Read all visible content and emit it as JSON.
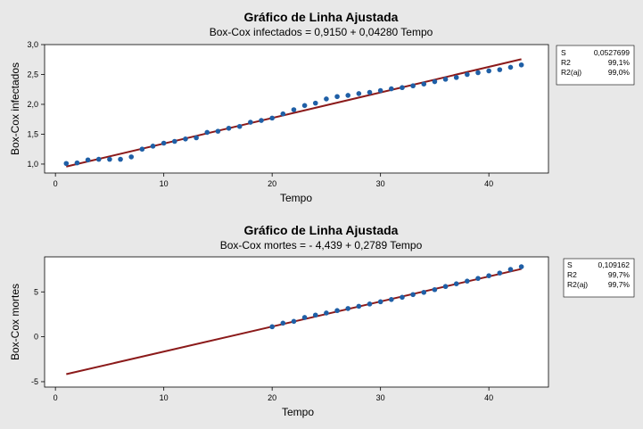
{
  "colors": {
    "point": "#1f5fa6",
    "line": "#8b1a1a"
  },
  "chart_data": [
    {
      "type": "scatter",
      "title": "Gráfico de Linha Ajustada",
      "subtitle": "Box-Cox infectados = 0,9150 + 0,04280 Tempo",
      "xlabel": "Tempo",
      "ylabel": "Box-Cox infectados",
      "xlim": [
        -1,
        45.5
      ],
      "ylim": [
        0.85,
        3.0
      ],
      "xticks": [
        0,
        10,
        20,
        30,
        40
      ],
      "yticks": [
        1.0,
        1.5,
        2.0,
        2.5,
        3.0
      ],
      "ytick_labels": [
        "1,0",
        "1,5",
        "2,0",
        "2,5",
        "3,0"
      ],
      "fit": {
        "intercept": 0.915,
        "slope": 0.0428,
        "x_range": [
          1,
          43
        ]
      },
      "points": {
        "x": [
          1,
          2,
          3,
          4,
          5,
          6,
          7,
          8,
          9,
          10,
          11,
          12,
          13,
          14,
          15,
          16,
          17,
          18,
          19,
          20,
          21,
          22,
          23,
          24,
          25,
          26,
          27,
          28,
          29,
          30,
          31,
          32,
          33,
          34,
          35,
          36,
          37,
          38,
          39,
          40,
          41,
          42,
          43
        ],
        "y": [
          1.01,
          1.02,
          1.07,
          1.08,
          1.08,
          1.08,
          1.12,
          1.25,
          1.3,
          1.35,
          1.38,
          1.42,
          1.44,
          1.53,
          1.55,
          1.6,
          1.63,
          1.7,
          1.73,
          1.77,
          1.84,
          1.91,
          1.98,
          2.02,
          2.09,
          2.13,
          2.15,
          2.18,
          2.2,
          2.23,
          2.26,
          2.28,
          2.31,
          2.34,
          2.38,
          2.42,
          2.45,
          2.5,
          2.53,
          2.56,
          2.58,
          2.62,
          2.66
        ]
      },
      "stats": [
        {
          "label": "S",
          "value": "0,0527699"
        },
        {
          "label": "R2",
          "value": "99,1%"
        },
        {
          "label": "R2(aj)",
          "value": "99,0%"
        }
      ]
    },
    {
      "type": "scatter",
      "title": "Gráfico de Linha Ajustada",
      "subtitle": "Box-Cox mortes = - 4,439 + 0,2789 Tempo",
      "xlabel": "Tempo",
      "ylabel": "Box-Cox mortes",
      "xlim": [
        -1,
        45.5
      ],
      "ylim": [
        -5.6,
        8.9
      ],
      "xticks": [
        0,
        10,
        20,
        30,
        40
      ],
      "yticks": [
        -5,
        0,
        5
      ],
      "ytick_labels": [
        "-5",
        "0",
        "5"
      ],
      "fit": {
        "intercept": -4.439,
        "slope": 0.2789,
        "x_range": [
          1,
          43
        ]
      },
      "points": {
        "x": [
          20,
          21,
          22,
          23,
          24,
          25,
          26,
          27,
          28,
          29,
          30,
          31,
          32,
          33,
          34,
          35,
          36,
          37,
          38,
          39,
          40,
          41,
          42,
          43
        ],
        "y": [
          1.12,
          1.52,
          1.72,
          2.15,
          2.42,
          2.65,
          2.92,
          3.15,
          3.4,
          3.65,
          3.9,
          4.15,
          4.4,
          4.7,
          4.95,
          5.25,
          5.6,
          5.9,
          6.2,
          6.5,
          6.8,
          7.1,
          7.5,
          7.8
        ]
      },
      "stats": [
        {
          "label": "S",
          "value": "0,109162"
        },
        {
          "label": "R2",
          "value": "99,7%"
        },
        {
          "label": "R2(aj)",
          "value": "99,7%"
        }
      ]
    }
  ]
}
